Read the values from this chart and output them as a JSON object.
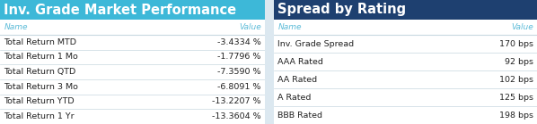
{
  "left_title": "Inv. Grade Market Performance",
  "right_title": "Spread by Rating",
  "left_header_bg": "#3db8d8",
  "right_header_bg": "#1e4070",
  "left_title_color": "#ffffff",
  "right_title_color": "#ffffff",
  "col_header_color": "#5bbbd8",
  "row_line_color": "#c8d8e0",
  "bg_color": "#dce8f0",
  "table_bg": "#ffffff",
  "left_names": [
    "Total Return MTD",
    "Total Return 1 Mo",
    "Total Return QTD",
    "Total Return 3 Mo",
    "Total Return YTD",
    "Total Return 1 Yr"
  ],
  "left_values": [
    "-3.4334 %",
    "-1.7796 %",
    "-7.3590 %",
    "-6.8091 %",
    "-13.2207 %",
    "-13.3604 %"
  ],
  "right_names": [
    "Inv. Grade Spread",
    "AAA Rated",
    "AA Rated",
    "A Rated",
    "BBB Rated"
  ],
  "right_values": [
    "170 bps",
    "92 bps",
    "102 bps",
    "125 bps",
    "198 bps"
  ],
  "name_label": "Name",
  "value_label": "Value",
  "font_size_title": 10.5,
  "font_size_header": 6.5,
  "font_size_row": 6.8,
  "fig_width": 5.98,
  "fig_height": 1.39,
  "dpi": 100
}
